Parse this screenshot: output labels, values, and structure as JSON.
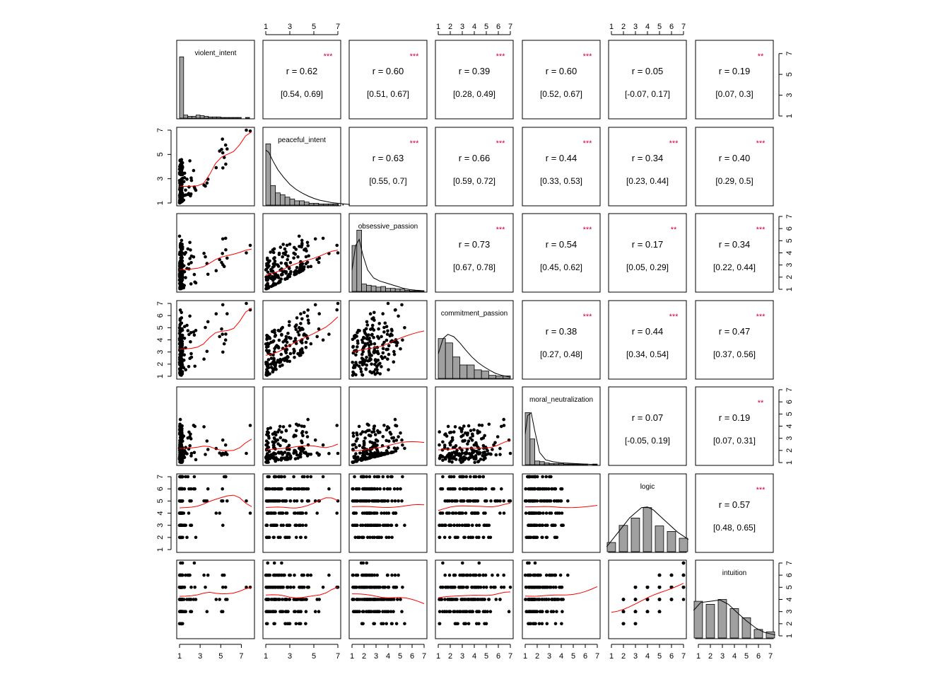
{
  "chart_data": {
    "type": "scatter-matrix",
    "title": "",
    "variables": [
      "violent_intent",
      "peaceful_intent",
      "obsessive_passion",
      "commitment_passion",
      "moral_neutralization",
      "logic",
      "intuition"
    ],
    "axis_ranges": [
      [
        1,
        8
      ],
      [
        1,
        7
      ],
      [
        1,
        7
      ],
      [
        1,
        7
      ],
      [
        1,
        7
      ],
      [
        1,
        7
      ],
      [
        1,
        7
      ]
    ],
    "axis_ticks": [
      [
        "1",
        "3",
        "5",
        "7"
      ],
      [
        "1",
        "3",
        "5",
        "7"
      ],
      [
        "1",
        "2",
        "3",
        "4",
        "5",
        "6",
        "7"
      ],
      [
        "1",
        "2",
        "3",
        "4",
        "5",
        "6",
        "7"
      ],
      [
        "1",
        "2",
        "3",
        "4",
        "5",
        "6",
        "7"
      ],
      [
        "1",
        "2",
        "3",
        "4",
        "5",
        "6",
        "7"
      ],
      [
        "1",
        "2",
        "3",
        "4",
        "5",
        "6",
        "7"
      ]
    ],
    "bottom_ticks": [
      [
        "1",
        "3",
        "5",
        "7"
      ],
      [
        "1",
        "3",
        "5",
        "7"
      ],
      [
        "1",
        "2",
        "3",
        "4",
        "5",
        "6",
        "7"
      ],
      [
        "1",
        "2",
        "3",
        "4",
        "5",
        "6",
        "7"
      ],
      [
        "1",
        "2",
        "3",
        "4",
        "5",
        "6",
        "7"
      ],
      [
        "1",
        "2",
        "3",
        "4",
        "5",
        "6",
        "7"
      ],
      [
        "1",
        "2",
        "3",
        "4",
        "5",
        "6",
        "7"
      ]
    ],
    "top_ticks": [
      null,
      [
        "1",
        "3",
        "5",
        "7"
      ],
      null,
      [
        "1",
        "2",
        "3",
        "4",
        "5",
        "6",
        "7"
      ],
      null,
      [
        "1",
        "2",
        "3",
        "4",
        "5",
        "6",
        "7"
      ],
      null
    ],
    "right_ticks": [
      [
        "1",
        "3",
        "5",
        "7"
      ],
      null,
      [
        "1",
        "2",
        "3",
        "4",
        "5",
        "6",
        "7"
      ],
      null,
      [
        "1",
        "2",
        "3",
        "4",
        "5",
        "6",
        "7"
      ],
      null,
      [
        "1",
        "2",
        "3",
        "4",
        "5",
        "6",
        "7"
      ]
    ],
    "left_ticks": [
      null,
      [
        "1",
        "3",
        "5",
        "7"
      ],
      null,
      [
        "1",
        "2",
        "3",
        "4",
        "5",
        "6",
        "7"
      ],
      null,
      [
        "1",
        "2",
        "3",
        "4",
        "5",
        "6",
        "7"
      ],
      null
    ],
    "correlations": [
      {
        "row": 0,
        "col": 1,
        "r": "r  = 0.62",
        "ci": "[0.54, 0.69]",
        "stars": "***"
      },
      {
        "row": 0,
        "col": 2,
        "r": "r  = 0.60",
        "ci": "[0.51, 0.67]",
        "stars": "***"
      },
      {
        "row": 0,
        "col": 3,
        "r": "r  = 0.39",
        "ci": "[0.28, 0.49]",
        "stars": "***"
      },
      {
        "row": 0,
        "col": 4,
        "r": "r  = 0.60",
        "ci": "[0.52, 0.67]",
        "stars": "***"
      },
      {
        "row": 0,
        "col": 5,
        "r": "r  = 0.05",
        "ci": "[-0.07, 0.17]",
        "stars": ""
      },
      {
        "row": 0,
        "col": 6,
        "r": "r  = 0.19",
        "ci": "[0.07, 0.3]",
        "stars": "**"
      },
      {
        "row": 1,
        "col": 2,
        "r": "r  = 0.63",
        "ci": "[0.55, 0.7]",
        "stars": "***"
      },
      {
        "row": 1,
        "col": 3,
        "r": "r  = 0.66",
        "ci": "[0.59, 0.72]",
        "stars": "***"
      },
      {
        "row": 1,
        "col": 4,
        "r": "r  = 0.44",
        "ci": "[0.33, 0.53]",
        "stars": "***"
      },
      {
        "row": 1,
        "col": 5,
        "r": "r  = 0.34",
        "ci": "[0.23, 0.44]",
        "stars": "***"
      },
      {
        "row": 1,
        "col": 6,
        "r": "r  = 0.40",
        "ci": "[0.29, 0.5]",
        "stars": "***"
      },
      {
        "row": 2,
        "col": 3,
        "r": "r  = 0.73",
        "ci": "[0.67, 0.78]",
        "stars": "***"
      },
      {
        "row": 2,
        "col": 4,
        "r": "r  = 0.54",
        "ci": "[0.45, 0.62]",
        "stars": "***"
      },
      {
        "row": 2,
        "col": 5,
        "r": "r  = 0.17",
        "ci": "[0.05, 0.29]",
        "stars": "**"
      },
      {
        "row": 2,
        "col": 6,
        "r": "r  = 0.34",
        "ci": "[0.22, 0.44]",
        "stars": "***"
      },
      {
        "row": 3,
        "col": 4,
        "r": "r  = 0.38",
        "ci": "[0.27, 0.48]",
        "stars": "***"
      },
      {
        "row": 3,
        "col": 5,
        "r": "r  = 0.44",
        "ci": "[0.34, 0.54]",
        "stars": "***"
      },
      {
        "row": 3,
        "col": 6,
        "r": "r  = 0.47",
        "ci": "[0.37, 0.56]",
        "stars": "***"
      },
      {
        "row": 4,
        "col": 5,
        "r": "r  = 0.07",
        "ci": "[-0.05, 0.19]",
        "stars": ""
      },
      {
        "row": 4,
        "col": 6,
        "r": "r  = 0.19",
        "ci": "[0.07, 0.31]",
        "stars": "**"
      },
      {
        "row": 5,
        "col": 6,
        "r": "r  = 0.57",
        "ci": "[0.48, 0.65]",
        "stars": "***"
      }
    ],
    "histograms": [
      {
        "variable": "violent_intent",
        "bin_edges": [
          1,
          1.4,
          1.8,
          2.2,
          2.6,
          3.0,
          3.4,
          3.8,
          4.2,
          4.6,
          5.0,
          5.4,
          5.8,
          6.2,
          6.6,
          7.0,
          7.4,
          7.8
        ],
        "relative_heights": [
          1.0,
          0.05,
          0.03,
          0.03,
          0.05,
          0.04,
          0.03,
          0.02,
          0.02,
          0.02,
          0.01,
          0.01,
          0.01,
          0.01,
          0.01,
          0.0,
          0.01
        ],
        "density": null
      },
      {
        "variable": "peaceful_intent",
        "bin_edges": [
          1,
          1.4,
          1.8,
          2.2,
          2.6,
          3.0,
          3.4,
          3.8,
          4.2,
          4.6,
          5.0,
          5.4,
          5.8,
          6.2,
          6.6,
          7.0,
          7.4,
          7.8
        ],
        "relative_heights": [
          1.0,
          0.32,
          0.2,
          0.17,
          0.13,
          0.1,
          0.07,
          0.07,
          0.05,
          0.03,
          0.03,
          0.02,
          0.02,
          0.02,
          0.02,
          0.01,
          0.01
        ],
        "density": [
          [
            1.0,
            0.9
          ],
          [
            1.25,
            0.86
          ],
          [
            1.6,
            0.72
          ],
          [
            2.0,
            0.58
          ],
          [
            2.5,
            0.45
          ],
          [
            3.0,
            0.34
          ],
          [
            3.5,
            0.26
          ],
          [
            4.0,
            0.2
          ],
          [
            4.5,
            0.15
          ],
          [
            5.0,
            0.11
          ],
          [
            5.5,
            0.08
          ],
          [
            6.0,
            0.06
          ],
          [
            6.5,
            0.04
          ],
          [
            7.0,
            0.03
          ],
          [
            7.5,
            0.02
          ],
          [
            8.0,
            0.01
          ]
        ]
      },
      {
        "variable": "obsessive_passion",
        "bin_edges": [
          1.0,
          1.4,
          1.8,
          2.2,
          2.6,
          3.0,
          3.4,
          3.8,
          4.2,
          4.6,
          5.0,
          5.4,
          5.8,
          6.2,
          6.6,
          7.0
        ],
        "relative_heights": [
          0.75,
          1.0,
          0.12,
          0.1,
          0.09,
          0.07,
          0.08,
          0.05,
          0.05,
          0.04,
          0.04,
          0.02,
          0.01,
          0.01,
          0.01
        ],
        "density": [
          [
            1.0,
            0.35
          ],
          [
            1.3,
            0.75
          ],
          [
            1.6,
            0.85
          ],
          [
            1.9,
            0.6
          ],
          [
            2.3,
            0.35
          ],
          [
            2.8,
            0.22
          ],
          [
            3.3,
            0.17
          ],
          [
            3.8,
            0.14
          ],
          [
            4.3,
            0.11
          ],
          [
            4.8,
            0.08
          ],
          [
            5.3,
            0.05
          ],
          [
            5.8,
            0.03
          ],
          [
            6.3,
            0.02
          ],
          [
            7.0,
            0.01
          ]
        ]
      },
      {
        "variable": "commitment_passion",
        "bin_edges": [
          1.0,
          1.6,
          2.2,
          2.8,
          3.4,
          4.0,
          4.6,
          5.2,
          5.8,
          6.4,
          7.0
        ],
        "relative_heights": [
          0.65,
          0.58,
          0.35,
          0.22,
          0.22,
          0.14,
          0.12,
          0.05,
          0.04,
          0.04
        ],
        "density": [
          [
            1.0,
            0.4
          ],
          [
            1.4,
            0.65
          ],
          [
            1.8,
            0.72
          ],
          [
            2.3,
            0.68
          ],
          [
            2.8,
            0.58
          ],
          [
            3.3,
            0.46
          ],
          [
            3.8,
            0.35
          ],
          [
            4.3,
            0.26
          ],
          [
            4.8,
            0.19
          ],
          [
            5.3,
            0.13
          ],
          [
            5.8,
            0.08
          ],
          [
            6.3,
            0.05
          ],
          [
            7.0,
            0.02
          ]
        ]
      },
      {
        "variable": "moral_neutralization",
        "bin_edges": [
          1.0,
          1.4,
          1.8,
          2.2,
          2.6,
          3.0,
          3.4,
          3.8,
          4.2,
          4.6,
          5.0,
          5.4,
          5.8,
          6.2,
          6.6,
          7.0
        ],
        "relative_heights": [
          0.85,
          0.42,
          0.06,
          0.05,
          0.03,
          0.02,
          0.02,
          0.02,
          0.01,
          0.01,
          0.01,
          0.01,
          0.01,
          0.0,
          0.01
        ],
        "density": [
          [
            1.0,
            0.5
          ],
          [
            1.2,
            0.8
          ],
          [
            1.5,
            0.85
          ],
          [
            1.8,
            0.55
          ],
          [
            2.2,
            0.2
          ],
          [
            2.7,
            0.08
          ],
          [
            3.3,
            0.05
          ],
          [
            4.0,
            0.03
          ],
          [
            5.0,
            0.02
          ],
          [
            6.0,
            0.01
          ],
          [
            7.0,
            0.0
          ]
        ]
      },
      {
        "variable": "logic",
        "bin_edges": [
          0.5,
          1.5,
          2.5,
          3.5,
          4.5,
          5.5,
          6.5,
          7.5
        ],
        "relative_heights": [
          0.15,
          0.43,
          0.55,
          0.72,
          0.42,
          0.33,
          0.22
        ],
        "bar_centers": [
          1,
          2,
          3,
          4,
          5,
          6,
          7
        ],
        "density": [
          [
            0.6,
            0.08
          ],
          [
            1.5,
            0.3
          ],
          [
            2.5,
            0.55
          ],
          [
            3.5,
            0.72
          ],
          [
            4.0,
            0.73
          ],
          [
            4.5,
            0.68
          ],
          [
            5.5,
            0.5
          ],
          [
            6.5,
            0.32
          ],
          [
            7.4,
            0.2
          ]
        ]
      },
      {
        "variable": "intuition",
        "bin_edges": [
          0.5,
          1.5,
          2.5,
          3.5,
          4.5,
          5.5,
          6.5,
          7.5
        ],
        "relative_heights": [
          0.6,
          0.55,
          0.63,
          0.48,
          0.33,
          0.14,
          0.1
        ],
        "bar_centers": [
          1,
          2,
          3,
          4,
          5,
          6,
          7
        ],
        "density": [
          [
            0.6,
            0.45
          ],
          [
            1.2,
            0.58
          ],
          [
            2.0,
            0.6
          ],
          [
            2.8,
            0.62
          ],
          [
            3.5,
            0.55
          ],
          [
            4.2,
            0.42
          ],
          [
            5.0,
            0.28
          ],
          [
            5.8,
            0.16
          ],
          [
            6.5,
            0.09
          ],
          [
            7.4,
            0.05
          ]
        ]
      }
    ]
  },
  "styles": {
    "star_color": "#cc0044",
    "loess_color": "#ff0000",
    "bar_fill": "#a0a0a0",
    "point_color": "#000000"
  }
}
